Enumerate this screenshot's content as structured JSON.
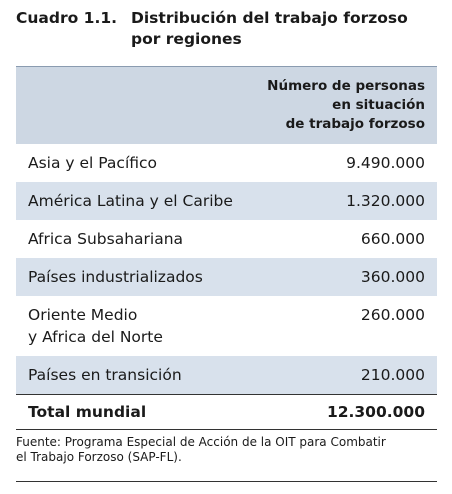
{
  "header": {
    "label": "Cuadro 1.1.",
    "title_lines": [
      "Distribución del trabajo forzoso",
      "por regiones"
    ]
  },
  "table": {
    "column_header_lines": [
      "Número de personas",
      "en situación",
      "de trabajo forzoso"
    ],
    "rows": [
      {
        "region_lines": [
          "Asia y el Pacífico"
        ],
        "value": "9.490.000"
      },
      {
        "region_lines": [
          "América Latina y el Caribe"
        ],
        "value": "1.320.000"
      },
      {
        "region_lines": [
          "Africa Subsahariana"
        ],
        "value": "660.000"
      },
      {
        "region_lines": [
          "Países industrializados"
        ],
        "value": "360.000"
      },
      {
        "region_lines": [
          "Oriente Medio",
          "y Africa del Norte"
        ],
        "value": "260.000"
      },
      {
        "region_lines": [
          "Países en transición"
        ],
        "value": "210.000"
      }
    ],
    "total": {
      "label": "Total mundial",
      "value": "12.300.000"
    }
  },
  "source_lines": [
    "Fuente: Programa Especial de Acción de la OIT para Combatir",
    "el Trabajo Forzoso (SAP-FL)."
  ]
}
